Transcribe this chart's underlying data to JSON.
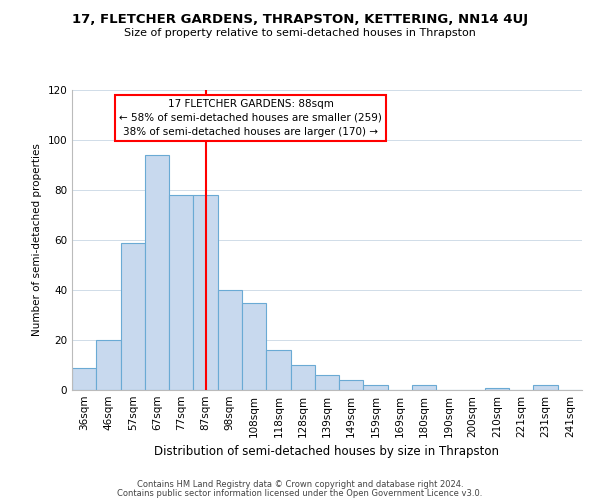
{
  "title": "17, FLETCHER GARDENS, THRAPSTON, KETTERING, NN14 4UJ",
  "subtitle": "Size of property relative to semi-detached houses in Thrapston",
  "xlabel": "Distribution of semi-detached houses by size in Thrapston",
  "ylabel": "Number of semi-detached properties",
  "categories": [
    "36sqm",
    "46sqm",
    "57sqm",
    "67sqm",
    "77sqm",
    "87sqm",
    "98sqm",
    "108sqm",
    "118sqm",
    "128sqm",
    "139sqm",
    "149sqm",
    "159sqm",
    "169sqm",
    "180sqm",
    "190sqm",
    "200sqm",
    "210sqm",
    "221sqm",
    "231sqm",
    "241sqm"
  ],
  "values": [
    9,
    20,
    59,
    94,
    78,
    78,
    40,
    35,
    16,
    10,
    6,
    4,
    2,
    0,
    2,
    0,
    0,
    1,
    0,
    2,
    0
  ],
  "bar_color": "#c8d9ee",
  "bar_edge_color": "#6aaad4",
  "marker_index": 5,
  "marker_color": "red",
  "annotation_title": "17 FLETCHER GARDENS: 88sqm",
  "annotation_line1": "← 58% of semi-detached houses are smaller (259)",
  "annotation_line2": "38% of semi-detached houses are larger (170) →",
  "ylim": [
    0,
    120
  ],
  "yticks": [
    0,
    20,
    40,
    60,
    80,
    100,
    120
  ],
  "footnote1": "Contains HM Land Registry data © Crown copyright and database right 2024.",
  "footnote2": "Contains public sector information licensed under the Open Government Licence v3.0.",
  "background_color": "#ffffff",
  "grid_color": "#d0dce8"
}
